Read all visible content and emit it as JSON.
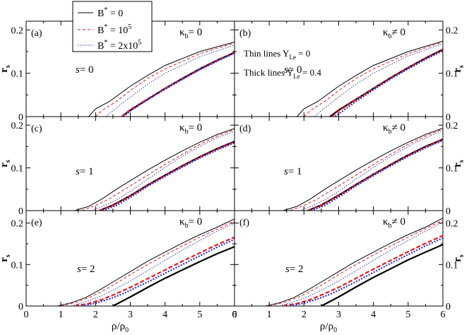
{
  "figure": {
    "legend": [
      {
        "label": "B* = 0",
        "color": "#000000",
        "dash": "solid"
      },
      {
        "label": "B* = 10^5",
        "color": "#e31a1c",
        "dash": "dashed"
      },
      {
        "label": "B* = 2x10^5",
        "color": "#2b2bd6",
        "dash": "dotted"
      }
    ],
    "notes": [
      "Thin lines Y_Le = 0",
      "Thick lines Y_Le = 0.4"
    ]
  },
  "chart_data": [
    {
      "type": "line",
      "panel": "(a)",
      "s_label": "s= 0",
      "kappa_label": "κ_b = 0",
      "xlabel": "ρ/ρ_0",
      "ylabel": "r_s",
      "xlim": [
        0,
        6
      ],
      "ylim": [
        0,
        0.22
      ],
      "xticks": [
        0,
        1,
        2,
        3,
        4,
        5,
        6
      ],
      "yticks": [
        0,
        0.1,
        0.2
      ],
      "y_axis_side": "left",
      "series": [
        {
          "name": "B* = 0, Y_Le = 0",
          "x": [
            1.8,
            2.0,
            2.4,
            3.0,
            3.5,
            4.0,
            5.0,
            6.0
          ],
          "y": [
            0,
            0.018,
            0.035,
            0.07,
            0.095,
            0.118,
            0.15,
            0.172
          ]
        },
        {
          "name": "B* = 10^5, Y_Le = 0",
          "x": [
            2.0,
            2.2,
            2.6,
            3.0,
            3.5,
            4.0,
            5.0,
            6.0
          ],
          "y": [
            0,
            0.015,
            0.035,
            0.06,
            0.088,
            0.11,
            0.145,
            0.17
          ]
        },
        {
          "name": "B* = 2x10^5, Y_Le = 0",
          "x": [
            2.3,
            2.6,
            3.0,
            3.5,
            4.0,
            5.0,
            6.0
          ],
          "y": [
            0,
            0.02,
            0.045,
            0.075,
            0.1,
            0.138,
            0.165
          ]
        },
        {
          "name": "B* = 0, Y_Le = 0.4",
          "x": [
            2.75,
            3.0,
            3.5,
            4.0,
            4.5,
            5.0,
            5.5,
            6.0
          ],
          "y": [
            0,
            0.015,
            0.04,
            0.065,
            0.088,
            0.11,
            0.13,
            0.148
          ]
        },
        {
          "name": "B* = 10^5, Y_Le = 0.4",
          "x": [
            2.75,
            3.0,
            3.5,
            4.0,
            4.5,
            5.0,
            5.5,
            6.0
          ],
          "y": [
            0,
            0.016,
            0.041,
            0.065,
            0.087,
            0.109,
            0.129,
            0.147
          ]
        },
        {
          "name": "B* = 2x10^5, Y_Le = 0.4",
          "x": [
            2.8,
            3.0,
            3.5,
            4.0,
            4.5,
            5.0,
            5.5,
            6.0
          ],
          "y": [
            0,
            0.013,
            0.039,
            0.063,
            0.086,
            0.108,
            0.128,
            0.146
          ]
        }
      ]
    },
    {
      "type": "line",
      "panel": "(b)",
      "s_label": "s= 0",
      "kappa_label": "κ_b ≠ 0",
      "xlabel": "ρ/ρ_0",
      "ylabel": "r_s",
      "xlim": [
        0,
        6
      ],
      "ylim": [
        0,
        0.22
      ],
      "xticks": [
        0,
        1,
        2,
        3,
        4,
        5,
        6
      ],
      "yticks": [
        0,
        0.1,
        0.2
      ],
      "y_axis_side": "right",
      "series": [
        {
          "name": "B* = 0, Y_Le = 0",
          "x": [
            1.8,
            2.0,
            2.4,
            3.0,
            3.5,
            4.0,
            5.0,
            6.0
          ],
          "y": [
            0,
            0.018,
            0.035,
            0.07,
            0.095,
            0.118,
            0.15,
            0.174
          ]
        },
        {
          "name": "B* = 10^5, Y_Le = 0",
          "x": [
            2.0,
            2.2,
            2.6,
            3.0,
            3.5,
            4.0,
            5.0,
            6.0
          ],
          "y": [
            0,
            0.015,
            0.035,
            0.06,
            0.088,
            0.11,
            0.145,
            0.172
          ]
        },
        {
          "name": "B* = 2x10^5, Y_Le = 0",
          "x": [
            2.3,
            2.6,
            3.0,
            3.5,
            4.0,
            5.0,
            6.0
          ],
          "y": [
            0,
            0.02,
            0.045,
            0.075,
            0.1,
            0.14,
            0.168
          ]
        },
        {
          "name": "B* = 0, Y_Le = 0.4",
          "x": [
            2.75,
            3.0,
            3.5,
            4.0,
            4.5,
            5.0,
            5.5,
            6.0
          ],
          "y": [
            0,
            0.015,
            0.04,
            0.065,
            0.09,
            0.113,
            0.135,
            0.155
          ]
        },
        {
          "name": "B* = 10^5, Y_Le = 0.4",
          "x": [
            2.8,
            3.0,
            3.5,
            4.0,
            4.5,
            5.0,
            5.5,
            6.0
          ],
          "y": [
            0,
            0.013,
            0.039,
            0.064,
            0.089,
            0.112,
            0.134,
            0.154
          ]
        },
        {
          "name": "B* = 2x10^5, Y_Le = 0.4",
          "x": [
            2.9,
            3.1,
            3.5,
            4.0,
            4.5,
            5.0,
            5.5,
            6.0
          ],
          "y": [
            0,
            0.012,
            0.035,
            0.062,
            0.087,
            0.11,
            0.132,
            0.152
          ]
        }
      ]
    },
    {
      "type": "line",
      "panel": "(c)",
      "s_label": "s= 1",
      "kappa_label": "κ_b = 0",
      "xlabel": "ρ/ρ_0",
      "ylabel": "r_s",
      "xlim": [
        0,
        6
      ],
      "ylim": [
        0,
        0.22
      ],
      "xticks": [
        0,
        1,
        2,
        3,
        4,
        5,
        6
      ],
      "yticks": [
        0,
        0.1,
        0.2
      ],
      "y_axis_side": "left",
      "series": [
        {
          "name": "B* = 0, Y_Le = 0",
          "x": [
            1.4,
            1.8,
            2.2,
            2.6,
            3.0,
            3.5,
            4.0,
            4.5,
            5.0,
            5.5,
            6.0
          ],
          "y": [
            0,
            0.01,
            0.028,
            0.05,
            0.07,
            0.095,
            0.118,
            0.14,
            0.16,
            0.178,
            0.192
          ]
        },
        {
          "name": "B* = 10^5, Y_Le = 0",
          "x": [
            1.6,
            2.0,
            2.4,
            2.8,
            3.2,
            3.6,
            4.0,
            4.5,
            5.0,
            5.5,
            6.0
          ],
          "y": [
            0,
            0.012,
            0.028,
            0.048,
            0.068,
            0.088,
            0.108,
            0.132,
            0.155,
            0.174,
            0.19
          ]
        },
        {
          "name": "B* = 2x10^5, Y_Le = 0",
          "x": [
            1.9,
            2.2,
            2.6,
            3.0,
            3.4,
            3.8,
            4.2,
            4.6,
            5.0,
            5.5,
            6.0
          ],
          "y": [
            0,
            0.01,
            0.025,
            0.045,
            0.068,
            0.09,
            0.112,
            0.132,
            0.15,
            0.17,
            0.186
          ]
        },
        {
          "name": "B* = 0, Y_Le = 0.4",
          "x": [
            2.1,
            2.5,
            3.0,
            3.5,
            4.0,
            4.5,
            5.0,
            5.5,
            6.0
          ],
          "y": [
            0,
            0.013,
            0.035,
            0.06,
            0.083,
            0.105,
            0.126,
            0.145,
            0.162
          ]
        },
        {
          "name": "B* = 10^5, Y_Le = 0.4",
          "x": [
            2.1,
            2.5,
            3.0,
            3.5,
            4.0,
            4.5,
            5.0,
            5.5,
            6.0
          ],
          "y": [
            0,
            0.012,
            0.034,
            0.059,
            0.082,
            0.104,
            0.125,
            0.144,
            0.161
          ]
        },
        {
          "name": "B* = 2x10^5, Y_Le = 0.4",
          "x": [
            2.2,
            2.6,
            3.0,
            3.5,
            4.0,
            4.5,
            5.0,
            5.5,
            6.0
          ],
          "y": [
            0,
            0.012,
            0.031,
            0.057,
            0.08,
            0.102,
            0.123,
            0.142,
            0.159
          ]
        }
      ]
    },
    {
      "type": "line",
      "panel": "(d)",
      "s_label": "s= 1",
      "kappa_label": "κ_b ≠ 0",
      "xlabel": "ρ/ρ_0",
      "ylabel": "r_s",
      "xlim": [
        0,
        6
      ],
      "ylim": [
        0,
        0.22
      ],
      "xticks": [
        0,
        1,
        2,
        3,
        4,
        5,
        6
      ],
      "yticks": [
        0,
        0.1,
        0.2
      ],
      "y_axis_side": "right",
      "series": [
        {
          "name": "B* = 0, Y_Le = 0",
          "x": [
            1.4,
            1.8,
            2.2,
            2.6,
            3.0,
            3.5,
            4.0,
            4.5,
            5.0,
            5.5,
            6.0
          ],
          "y": [
            0,
            0.01,
            0.028,
            0.05,
            0.07,
            0.095,
            0.118,
            0.14,
            0.16,
            0.178,
            0.193
          ]
        },
        {
          "name": "B* = 10^5, Y_Le = 0",
          "x": [
            1.6,
            2.0,
            2.4,
            2.8,
            3.2,
            3.6,
            4.0,
            4.5,
            5.0,
            5.5,
            6.0
          ],
          "y": [
            0,
            0.012,
            0.028,
            0.048,
            0.068,
            0.088,
            0.108,
            0.132,
            0.155,
            0.174,
            0.191
          ]
        },
        {
          "name": "B* = 2x10^5, Y_Le = 0",
          "x": [
            1.9,
            2.2,
            2.6,
            3.0,
            3.4,
            3.8,
            4.2,
            4.6,
            5.0,
            5.5,
            6.0
          ],
          "y": [
            0,
            0.01,
            0.025,
            0.045,
            0.068,
            0.09,
            0.112,
            0.132,
            0.15,
            0.17,
            0.188
          ]
        },
        {
          "name": "B* = 0, Y_Le = 0.4",
          "x": [
            2.1,
            2.5,
            3.0,
            3.5,
            4.0,
            4.5,
            5.0,
            5.5,
            6.0
          ],
          "y": [
            0,
            0.013,
            0.036,
            0.061,
            0.085,
            0.108,
            0.13,
            0.15,
            0.167
          ]
        },
        {
          "name": "B* = 10^5, Y_Le = 0.4",
          "x": [
            2.1,
            2.5,
            3.0,
            3.5,
            4.0,
            4.5,
            5.0,
            5.5,
            6.0
          ],
          "y": [
            0,
            0.012,
            0.035,
            0.06,
            0.084,
            0.107,
            0.129,
            0.149,
            0.166
          ]
        },
        {
          "name": "B* = 2x10^5, Y_Le = 0.4",
          "x": [
            2.2,
            2.6,
            3.0,
            3.5,
            4.0,
            4.5,
            5.0,
            5.5,
            6.0
          ],
          "y": [
            0,
            0.012,
            0.032,
            0.058,
            0.082,
            0.105,
            0.127,
            0.147,
            0.164
          ]
        }
      ]
    },
    {
      "type": "line",
      "panel": "(e)",
      "s_label": "s= 2",
      "kappa_label": "κ_b = 0",
      "xlabel": "ρ/ρ_0",
      "ylabel": "r_s",
      "xlim": [
        0,
        6
      ],
      "ylim": [
        0,
        0.23
      ],
      "xticks": [
        0,
        1,
        2,
        3,
        4,
        5,
        6
      ],
      "yticks": [
        0,
        0.1,
        0.2
      ],
      "y_axis_side": "left",
      "series": [
        {
          "name": "B* = 0, Y_Le = 0",
          "x": [
            0.9,
            1.3,
            1.7,
            2.1,
            2.5,
            3.0,
            3.5,
            4.0,
            4.5,
            5.0,
            5.5,
            6.0
          ],
          "y": [
            0,
            0.008,
            0.02,
            0.038,
            0.058,
            0.083,
            0.108,
            0.13,
            0.152,
            0.172,
            0.19,
            0.21
          ]
        },
        {
          "name": "B* = 10^5, Y_Le = 0",
          "x": [
            1.0,
            1.4,
            1.8,
            2.2,
            2.6,
            3.0,
            3.5,
            4.0,
            4.5,
            5.0,
            5.5,
            6.0
          ],
          "y": [
            0,
            0.008,
            0.02,
            0.036,
            0.055,
            0.076,
            0.1,
            0.123,
            0.145,
            0.166,
            0.185,
            0.205
          ]
        },
        {
          "name": "B* = 2x10^5, Y_Le = 0",
          "x": [
            1.3,
            1.7,
            2.1,
            2.5,
            2.9,
            3.3,
            3.7,
            4.1,
            4.5,
            5.0,
            5.5,
            6.0
          ],
          "y": [
            0,
            0.01,
            0.022,
            0.038,
            0.056,
            0.075,
            0.095,
            0.115,
            0.135,
            0.158,
            0.18,
            0.2
          ]
        },
        {
          "name": "B* = 0, Y_Le = 0.4",
          "x": [
            2.5,
            3.0,
            3.5,
            4.0,
            4.5,
            5.0,
            5.5,
            6.0
          ],
          "y": [
            0,
            0.022,
            0.045,
            0.067,
            0.087,
            0.107,
            0.126,
            0.143
          ]
        },
        {
          "name": "B* = 10^5, Y_Le = 0.4",
          "x": [
            1.4,
            1.8,
            2.2,
            2.6,
            3.0,
            3.5,
            4.0,
            4.5,
            5.0,
            5.5,
            6.0
          ],
          "y": [
            0,
            0.006,
            0.016,
            0.03,
            0.045,
            0.066,
            0.087,
            0.108,
            0.128,
            0.148,
            0.166
          ]
        },
        {
          "name": "B* = 2x10^5, Y_Le = 0.4",
          "x": [
            1.6,
            2.0,
            2.4,
            2.8,
            3.2,
            3.6,
            4.0,
            4.5,
            5.0,
            5.5,
            6.0
          ],
          "y": [
            0,
            0.007,
            0.017,
            0.03,
            0.046,
            0.062,
            0.079,
            0.1,
            0.121,
            0.142,
            0.161
          ]
        }
      ]
    },
    {
      "type": "line",
      "panel": "(f)",
      "s_label": "s= 2",
      "kappa_label": "κ_b ≠ 0",
      "xlabel": "ρ/ρ_0",
      "ylabel": "r_s",
      "xlim": [
        0,
        6
      ],
      "ylim": [
        0,
        0.23
      ],
      "xticks": [
        0,
        1,
        2,
        3,
        4,
        5,
        6
      ],
      "yticks": [
        0,
        0.1,
        0.2
      ],
      "y_axis_side": "right",
      "series": [
        {
          "name": "B* = 0, Y_Le = 0",
          "x": [
            0.9,
            1.3,
            1.7,
            2.1,
            2.5,
            3.0,
            3.5,
            4.0,
            4.5,
            5.0,
            5.5,
            6.0
          ],
          "y": [
            0,
            0.008,
            0.02,
            0.038,
            0.058,
            0.083,
            0.108,
            0.13,
            0.152,
            0.172,
            0.19,
            0.212
          ]
        },
        {
          "name": "B* = 10^5, Y_Le = 0",
          "x": [
            1.0,
            1.4,
            1.8,
            2.2,
            2.6,
            3.0,
            3.5,
            4.0,
            4.5,
            5.0,
            5.5,
            6.0
          ],
          "y": [
            0,
            0.008,
            0.02,
            0.036,
            0.055,
            0.076,
            0.1,
            0.123,
            0.145,
            0.166,
            0.186,
            0.207
          ]
        },
        {
          "name": "B* = 2x10^5, Y_Le = 0",
          "x": [
            1.3,
            1.7,
            2.1,
            2.5,
            2.9,
            3.3,
            3.7,
            4.1,
            4.5,
            5.0,
            5.5,
            6.0
          ],
          "y": [
            0,
            0.01,
            0.022,
            0.038,
            0.056,
            0.075,
            0.095,
            0.115,
            0.135,
            0.158,
            0.18,
            0.202
          ]
        },
        {
          "name": "B* = 0, Y_Le = 0.4",
          "x": [
            2.5,
            3.0,
            3.5,
            4.0,
            4.5,
            5.0,
            5.5,
            6.0
          ],
          "y": [
            0,
            0.022,
            0.046,
            0.069,
            0.09,
            0.111,
            0.13,
            0.148
          ]
        },
        {
          "name": "B* = 10^5, Y_Le = 0.4",
          "x": [
            1.4,
            1.8,
            2.2,
            2.6,
            3.0,
            3.5,
            4.0,
            4.5,
            5.0,
            5.5,
            6.0
          ],
          "y": [
            0,
            0.006,
            0.016,
            0.03,
            0.045,
            0.067,
            0.089,
            0.11,
            0.131,
            0.151,
            0.17
          ]
        },
        {
          "name": "B* = 2x10^5, Y_Le = 0.4",
          "x": [
            1.6,
            2.0,
            2.4,
            2.8,
            3.2,
            3.6,
            4.0,
            4.5,
            5.0,
            5.5,
            6.0
          ],
          "y": [
            0,
            0.007,
            0.017,
            0.03,
            0.046,
            0.063,
            0.081,
            0.103,
            0.124,
            0.145,
            0.164
          ]
        }
      ]
    }
  ]
}
